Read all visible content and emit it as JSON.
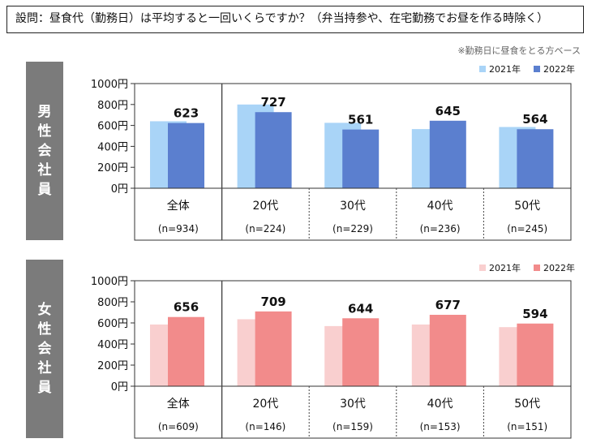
{
  "question": "設問：昼食代（勤務日）は平均すると一回いくらですか？（弁当持参や、在宅勤務でお昼を作る時除く）",
  "note": "※勤務日に昼食をとる方ベース",
  "colors": {
    "male_2021": "#a9d4f7",
    "male_2022": "#5b7fcf",
    "female_2021": "#f9cfcf",
    "female_2022": "#f28b8b",
    "side_bg": "#7b7b7b"
  },
  "chart_data": [
    {
      "type": "bar",
      "group_label": "男性会社員",
      "group_label_chars": [
        "男",
        "性",
        "会",
        "社",
        "員"
      ],
      "legend": [
        "2021年",
        "2022年"
      ],
      "categories": [
        "全体",
        "20代",
        "30代",
        "40代",
        "50代"
      ],
      "n_labels": [
        "(n=934)",
        "(n=224)",
        "(n=229)",
        "(n=236)",
        "(n=245)"
      ],
      "yticks": [
        "0円",
        "200円",
        "400円",
        "600円",
        "800円",
        "1000円"
      ],
      "ylim": [
        0,
        1000
      ],
      "series": [
        {
          "name": "2021年",
          "values": [
            640,
            800,
            625,
            565,
            585
          ]
        },
        {
          "name": "2022年",
          "values": [
            623,
            727,
            561,
            645,
            564
          ]
        }
      ],
      "data_labels": [
        "623",
        "727",
        "561",
        "645",
        "564"
      ]
    },
    {
      "type": "bar",
      "group_label": "女性会社員",
      "group_label_chars": [
        "女",
        "性",
        "会",
        "社",
        "員"
      ],
      "legend": [
        "2021年",
        "2022年"
      ],
      "categories": [
        "全体",
        "20代",
        "30代",
        "40代",
        "50代"
      ],
      "n_labels": [
        "(n=609)",
        "(n=146)",
        "(n=159)",
        "(n=153)",
        "(n=151)"
      ],
      "yticks": [
        "0円",
        "200円",
        "400円",
        "600円",
        "800円",
        "1000円"
      ],
      "ylim": [
        0,
        1000
      ],
      "series": [
        {
          "name": "2021年",
          "values": [
            585,
            635,
            570,
            585,
            560
          ]
        },
        {
          "name": "2022年",
          "values": [
            656,
            709,
            644,
            677,
            594
          ]
        }
      ],
      "data_labels": [
        "656",
        "709",
        "644",
        "677",
        "594"
      ]
    }
  ]
}
